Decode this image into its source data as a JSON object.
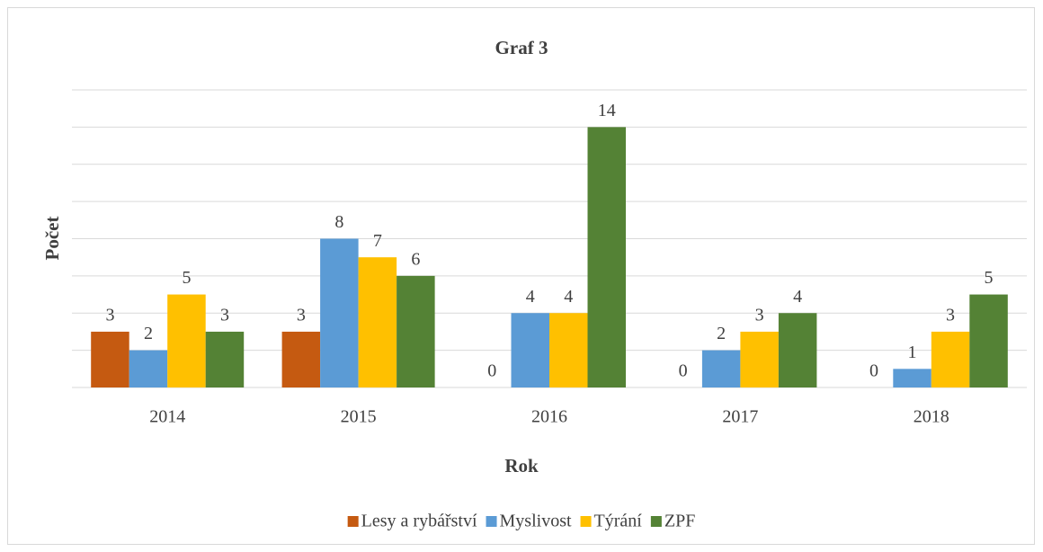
{
  "chart_data": {
    "type": "bar",
    "title": "Graf 3",
    "x_label": "Rok",
    "y_label": "Počet",
    "categories": [
      "2014",
      "2015",
      "2016",
      "2017",
      "2018"
    ],
    "series": [
      {
        "name": "Lesy a rybářství",
        "color": "#c55a11",
        "values": [
          3,
          3,
          0,
          0,
          0
        ]
      },
      {
        "name": "Myslivost",
        "color": "#5b9bd5",
        "values": [
          2,
          8,
          4,
          2,
          1
        ]
      },
      {
        "name": "Týrání",
        "color": "#ffc000",
        "values": [
          5,
          7,
          4,
          3,
          3
        ]
      },
      {
        "name": "ZPF",
        "color": "#548235",
        "values": [
          3,
          6,
          14,
          4,
          5
        ]
      }
    ],
    "ylim": [
      0,
      16
    ],
    "yticks": [
      0,
      2,
      4,
      6,
      8,
      10,
      12,
      14,
      16
    ],
    "grid": true,
    "legend": "bottom"
  }
}
